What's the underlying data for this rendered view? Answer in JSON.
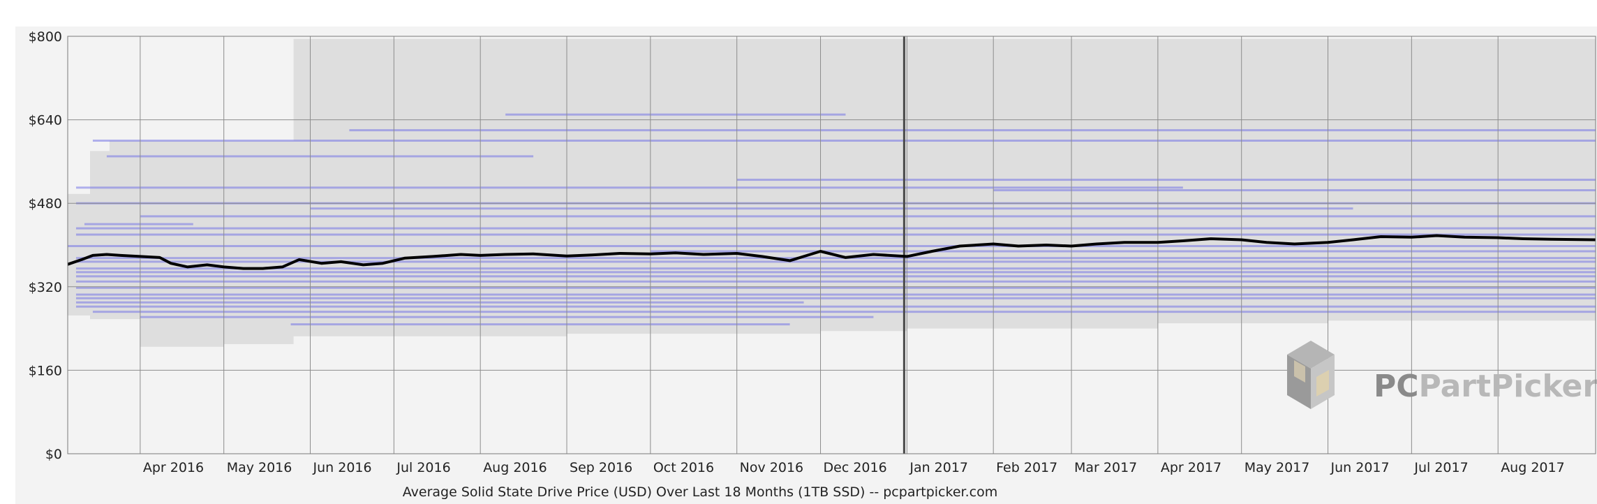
{
  "chart_data": {
    "type": "line",
    "title": "Average Solid State Drive Price (USD) Over Last 18 Months (1TB SSD) -- pcpartpicker.com",
    "x_unit": "date",
    "x_range": [
      "2016-03-06",
      "2017-09-05"
    ],
    "ylim": [
      0,
      800
    ],
    "y_ticks": [
      0,
      160,
      320,
      480,
      640,
      800
    ],
    "y_tick_labels": [
      "$0",
      "$160",
      "$320",
      "$480",
      "$640",
      "$800"
    ],
    "x_ticks": [
      {
        "date": "2016-04-01",
        "label": "Apr 2016"
      },
      {
        "date": "2016-05-01",
        "label": "May 2016"
      },
      {
        "date": "2016-06-01",
        "label": "Jun 2016"
      },
      {
        "date": "2016-07-01",
        "label": "Jul 2016"
      },
      {
        "date": "2016-08-01",
        "label": "Aug 2016"
      },
      {
        "date": "2016-09-01",
        "label": "Sep 2016"
      },
      {
        "date": "2016-10-01",
        "label": "Oct 2016"
      },
      {
        "date": "2016-11-01",
        "label": "Nov 2016"
      },
      {
        "date": "2016-12-01",
        "label": "Dec 2016"
      },
      {
        "date": "2017-01-01",
        "label": "Jan 2017"
      },
      {
        "date": "2017-02-01",
        "label": "Feb 2017"
      },
      {
        "date": "2017-03-01",
        "label": "Mar 2017"
      },
      {
        "date": "2017-04-01",
        "label": "Apr 2017"
      },
      {
        "date": "2017-05-01",
        "label": "May 2017"
      },
      {
        "date": "2017-06-01",
        "label": "Jun 2017"
      },
      {
        "date": "2017-07-01",
        "label": "Jul 2017"
      },
      {
        "date": "2017-08-01",
        "label": "Aug 2017"
      }
    ],
    "year_divider": "2016-12-31",
    "grid": true,
    "series": [
      {
        "color": "#000000",
        "points": [
          [
            "2016-03-06",
            363
          ],
          [
            "2016-03-11",
            372
          ],
          [
            "2016-03-15",
            380
          ],
          [
            "2016-03-20",
            382
          ],
          [
            "2016-03-25",
            380
          ],
          [
            "2016-04-01",
            378
          ],
          [
            "2016-04-08",
            376
          ],
          [
            "2016-04-12",
            365
          ],
          [
            "2016-04-18",
            358
          ],
          [
            "2016-04-25",
            362
          ],
          [
            "2016-05-01",
            358
          ],
          [
            "2016-05-08",
            355
          ],
          [
            "2016-05-15",
            355
          ],
          [
            "2016-05-22",
            358
          ],
          [
            "2016-05-28",
            372
          ],
          [
            "2016-06-05",
            365
          ],
          [
            "2016-06-12",
            368
          ],
          [
            "2016-06-20",
            362
          ],
          [
            "2016-06-27",
            365
          ],
          [
            "2016-07-05",
            375
          ],
          [
            "2016-07-15",
            378
          ],
          [
            "2016-07-25",
            382
          ],
          [
            "2016-08-01",
            380
          ],
          [
            "2016-08-10",
            382
          ],
          [
            "2016-08-20",
            383
          ],
          [
            "2016-09-01",
            379
          ],
          [
            "2016-09-10",
            381
          ],
          [
            "2016-09-20",
            384
          ],
          [
            "2016-10-01",
            383
          ],
          [
            "2016-10-10",
            385
          ],
          [
            "2016-10-20",
            382
          ],
          [
            "2016-11-01",
            384
          ],
          [
            "2016-11-10",
            378
          ],
          [
            "2016-11-20",
            370
          ],
          [
            "2016-12-01",
            388
          ],
          [
            "2016-12-10",
            376
          ],
          [
            "2016-12-20",
            382
          ],
          [
            "2017-01-01",
            378
          ],
          [
            "2017-01-10",
            388
          ],
          [
            "2017-01-20",
            398
          ],
          [
            "2017-02-01",
            402
          ],
          [
            "2017-02-10",
            398
          ],
          [
            "2017-02-20",
            400
          ],
          [
            "2017-03-01",
            398
          ],
          [
            "2017-03-10",
            402
          ],
          [
            "2017-03-20",
            405
          ],
          [
            "2017-04-01",
            405
          ],
          [
            "2017-04-10",
            408
          ],
          [
            "2017-04-20",
            412
          ],
          [
            "2017-05-01",
            410
          ],
          [
            "2017-05-10",
            405
          ],
          [
            "2017-05-20",
            402
          ],
          [
            "2017-06-01",
            405
          ],
          [
            "2017-06-10",
            410
          ],
          [
            "2017-06-20",
            416
          ],
          [
            "2017-07-01",
            415
          ],
          [
            "2017-07-10",
            418
          ],
          [
            "2017-07-20",
            415
          ],
          [
            "2017-08-01",
            414
          ],
          [
            "2017-08-10",
            412
          ],
          [
            "2017-08-20",
            411
          ],
          [
            "2017-09-05",
            410
          ]
        ]
      }
    ],
    "price_bands": [
      {
        "start": "2016-03-06",
        "low": 265,
        "high": 498
      },
      {
        "start": "2016-03-14",
        "low": 258,
        "high": 580
      },
      {
        "start": "2016-03-21",
        "low": 258,
        "high": 600
      },
      {
        "start": "2016-04-01",
        "low": 205,
        "high": 600
      },
      {
        "start": "2016-05-01",
        "low": 210,
        "high": 600
      },
      {
        "start": "2016-05-26",
        "low": 225,
        "high": 795
      },
      {
        "start": "2016-09-01",
        "low": 230,
        "high": 795
      },
      {
        "start": "2016-12-01",
        "low": 235,
        "high": 795
      },
      {
        "start": "2017-01-01",
        "low": 240,
        "high": 795
      },
      {
        "start": "2017-04-01",
        "low": 250,
        "high": 795
      },
      {
        "start": "2017-06-01",
        "low": 255,
        "high": 795
      },
      {
        "start": "2017-09-05",
        "low": 255,
        "high": 795
      }
    ],
    "price_bars": [
      {
        "start": "2016-03-09",
        "end": "2017-09-05",
        "price": 480
      },
      {
        "start": "2016-03-06",
        "end": "2017-09-05",
        "price": 398
      },
      {
        "start": "2016-03-09",
        "end": "2017-09-05",
        "price": 348
      },
      {
        "start": "2016-03-09",
        "end": "2017-09-05",
        "price": 305
      },
      {
        "start": "2016-03-09",
        "end": "2016-11-25",
        "price": 290
      },
      {
        "start": "2016-03-15",
        "end": "2017-09-05",
        "price": 600
      },
      {
        "start": "2016-06-15",
        "end": "2017-09-05",
        "price": 620
      },
      {
        "start": "2016-08-10",
        "end": "2016-12-10",
        "price": 650
      },
      {
        "start": "2016-03-09",
        "end": "2017-04-10",
        "price": 510
      },
      {
        "start": "2016-03-09",
        "end": "2017-09-05",
        "price": 432
      },
      {
        "start": "2016-03-09",
        "end": "2017-09-05",
        "price": 420
      },
      {
        "start": "2016-04-01",
        "end": "2017-09-05",
        "price": 455
      },
      {
        "start": "2016-03-09",
        "end": "2017-09-05",
        "price": 368
      },
      {
        "start": "2016-03-09",
        "end": "2017-09-05",
        "price": 355
      },
      {
        "start": "2016-03-09",
        "end": "2017-09-05",
        "price": 340
      },
      {
        "start": "2016-03-09",
        "end": "2017-09-05",
        "price": 330
      },
      {
        "start": "2016-03-09",
        "end": "2017-09-05",
        "price": 318
      },
      {
        "start": "2016-03-09",
        "end": "2017-09-05",
        "price": 298
      },
      {
        "start": "2016-03-09",
        "end": "2017-09-05",
        "price": 282
      },
      {
        "start": "2016-03-15",
        "end": "2017-09-05",
        "price": 272
      },
      {
        "start": "2016-04-01",
        "end": "2016-12-20",
        "price": 262
      },
      {
        "start": "2016-05-25",
        "end": "2016-11-20",
        "price": 248
      },
      {
        "start": "2016-03-20",
        "end": "2016-08-20",
        "price": 570
      },
      {
        "start": "2016-03-12",
        "end": "2016-04-20",
        "price": 440
      },
      {
        "start": "2016-06-01",
        "end": "2017-06-10",
        "price": 470
      },
      {
        "start": "2016-11-01",
        "end": "2017-09-05",
        "price": 525
      },
      {
        "start": "2016-10-01",
        "end": "2017-09-05",
        "price": 388
      },
      {
        "start": "2017-02-01",
        "end": "2017-09-05",
        "price": 505
      },
      {
        "start": "2016-03-09",
        "end": "2017-09-05",
        "price": 375
      }
    ]
  },
  "watermark": {
    "brand_part1": "PC",
    "brand_part2": "PartPicker",
    "color_part1": "#8a8a8a",
    "color_part2": "#b8b8b8",
    "logo": "cube-icon"
  },
  "colors": {
    "line": "#000000",
    "band": "#dedede",
    "price_bar": "#6b6be6",
    "grid": "#8c8c8c",
    "plot_bg": "#f3f3f3"
  }
}
